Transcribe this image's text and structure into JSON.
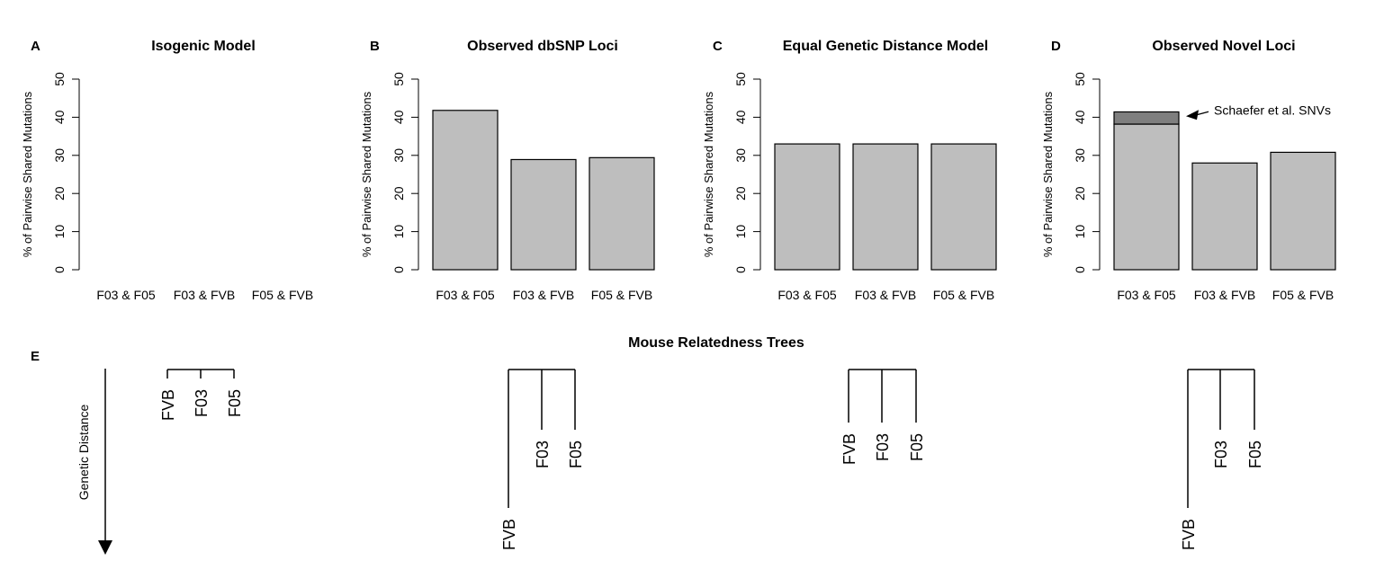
{
  "figure": {
    "trees_title": "Mouse Relatedness Trees",
    "trees_letter": "E",
    "genetic_distance_label": "Genetic Distance"
  },
  "colors": {
    "bar_fill": "#bebebe",
    "bar_highlight": "#7f7f7f",
    "line": "#000000"
  },
  "chart_data": [
    {
      "type": "bar",
      "letter": "A",
      "title": "Isogenic Model",
      "ylabel": "% of Pairwise Shared Mutations",
      "xlabel": "",
      "ylim": [
        0,
        50
      ],
      "yticks": [
        0,
        10,
        20,
        30,
        40,
        50
      ],
      "categories": [
        "F03 & F05",
        "F03 & FVB",
        "F05 & FVB"
      ],
      "values": [
        0,
        0,
        0
      ],
      "grid": false
    },
    {
      "type": "bar",
      "letter": "B",
      "title": "Observed dbSNP Loci",
      "ylabel": "% of Pairwise Shared Mutations",
      "xlabel": "",
      "ylim": [
        0,
        50
      ],
      "yticks": [
        0,
        10,
        20,
        30,
        40,
        50
      ],
      "categories": [
        "F03 & F05",
        "F03 & FVB",
        "F05 & FVB"
      ],
      "values": [
        41.8,
        28.9,
        29.4
      ],
      "grid": false
    },
    {
      "type": "bar",
      "letter": "C",
      "title": "Equal Genetic Distance Model",
      "ylabel": "% of Pairwise Shared Mutations",
      "xlabel": "",
      "ylim": [
        0,
        50
      ],
      "yticks": [
        0,
        10,
        20,
        30,
        40,
        50
      ],
      "categories": [
        "F03 & F05",
        "F03 & FVB",
        "F05 & FVB"
      ],
      "values": [
        33.0,
        33.0,
        33.0
      ],
      "grid": false
    },
    {
      "type": "bar",
      "letter": "D",
      "title": "Observed Novel Loci",
      "ylabel": "% of Pairwise Shared Mutations",
      "xlabel": "",
      "ylim": [
        0,
        50
      ],
      "yticks": [
        0,
        10,
        20,
        30,
        40,
        50
      ],
      "categories": [
        "F03 & F05",
        "F03 & FVB",
        "F05 & FVB"
      ],
      "values": [
        38.2,
        28.0,
        30.8
      ],
      "stacked_extra": [
        3.2,
        0,
        0
      ],
      "annotation": {
        "text": "Schaefer et al. SNVs",
        "target_category": "F03 & F05",
        "target_value": 40.5
      },
      "grid": false
    }
  ],
  "trees": [
    {
      "layout": "star",
      "leaves": [
        "FVB",
        "F03",
        "F05"
      ]
    },
    {
      "layout": "outgroup",
      "outgroup": "FVB",
      "leaves": [
        "F03",
        "F05"
      ]
    },
    {
      "layout": "equal",
      "leaves": [
        "FVB",
        "F03",
        "F05"
      ]
    },
    {
      "layout": "outgroup",
      "outgroup": "FVB",
      "leaves": [
        "F03",
        "F05"
      ]
    }
  ]
}
